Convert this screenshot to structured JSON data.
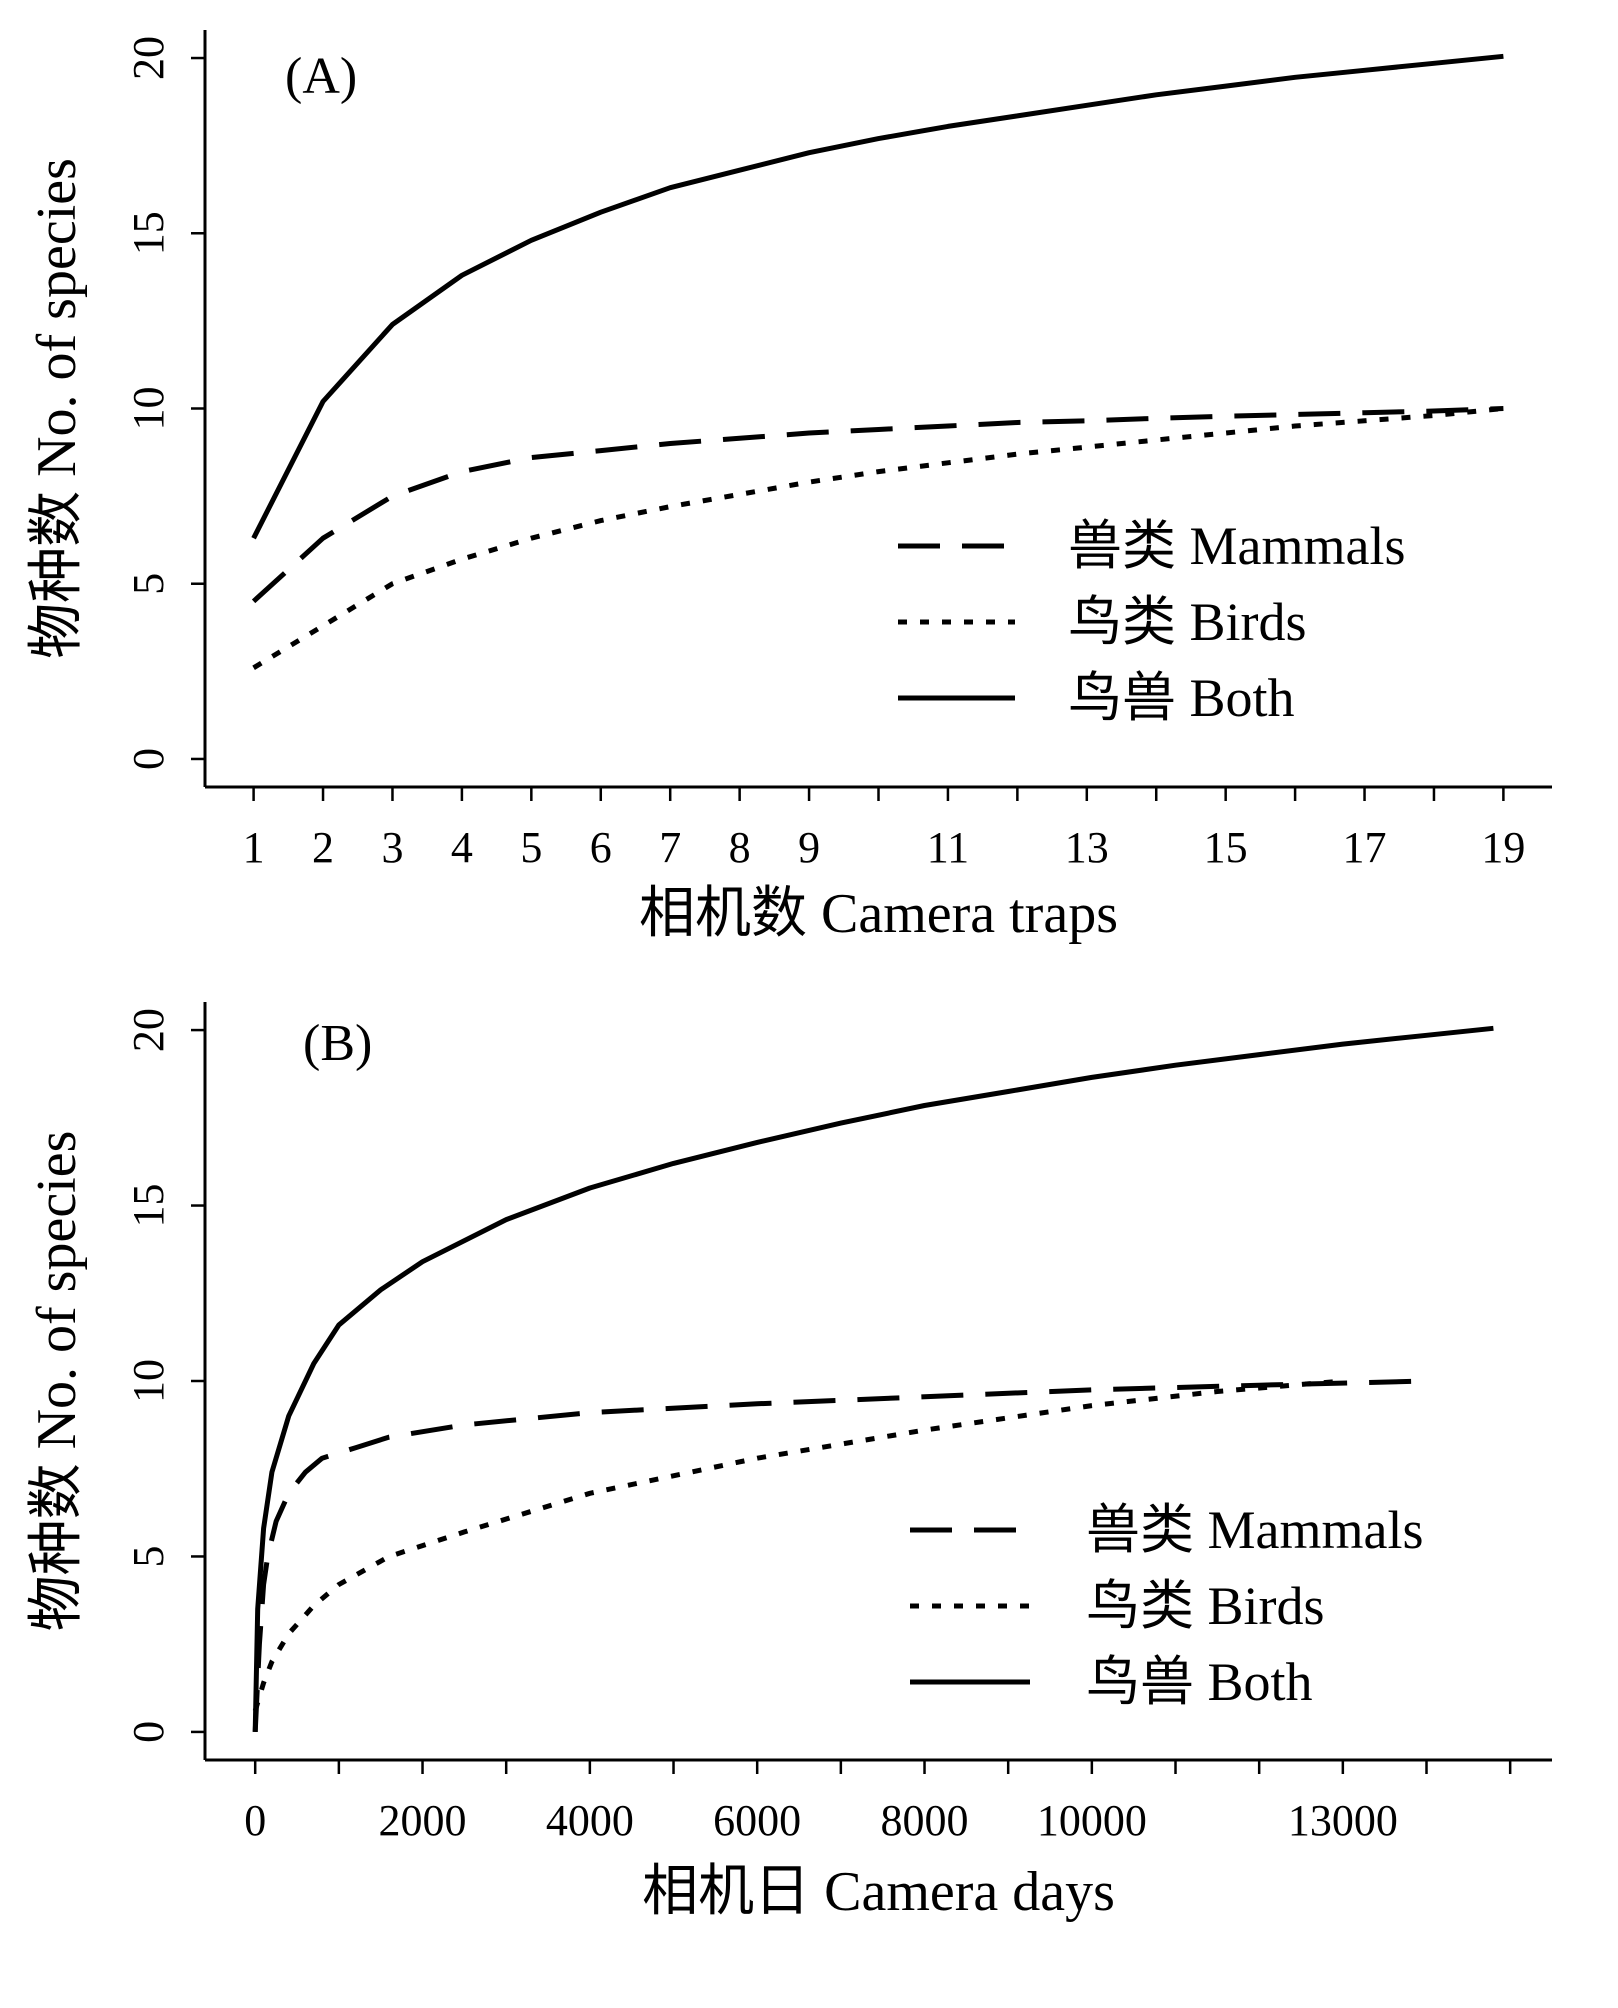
{
  "chart_data": [
    {
      "type": "line",
      "panel_label": "(A)",
      "xlabel": "相机数 Camera traps",
      "ylabel": "物种数 No. of species",
      "xlim": [
        0.3,
        19.7
      ],
      "ylim": [
        -0.8,
        20.8
      ],
      "x_ticks": [
        1,
        2,
        3,
        4,
        5,
        6,
        7,
        8,
        9,
        11,
        13,
        15,
        17,
        19
      ],
      "x_minor_ticks": [
        10,
        12,
        14,
        16,
        18
      ],
      "y_ticks": [
        0,
        5,
        10,
        15,
        20
      ],
      "grid": false,
      "legend": "bottom-right",
      "series": [
        {
          "name": "兽类 Mammals",
          "style": "dashed",
          "x": [
            1,
            2,
            3,
            4,
            5,
            6,
            7,
            8,
            9,
            10,
            11,
            12,
            13,
            14,
            15,
            16,
            17,
            18,
            19
          ],
          "y": [
            4.5,
            6.3,
            7.5,
            8.2,
            8.6,
            8.8,
            9.0,
            9.15,
            9.3,
            9.4,
            9.5,
            9.6,
            9.65,
            9.72,
            9.78,
            9.83,
            9.88,
            9.93,
            10.0
          ]
        },
        {
          "name": "鸟类 Birds",
          "style": "dotted",
          "x": [
            1,
            2,
            3,
            4,
            5,
            6,
            7,
            8,
            9,
            10,
            11,
            12,
            13,
            14,
            15,
            16,
            17,
            18,
            19
          ],
          "y": [
            2.6,
            3.8,
            5.0,
            5.7,
            6.3,
            6.8,
            7.2,
            7.55,
            7.9,
            8.2,
            8.45,
            8.7,
            8.9,
            9.1,
            9.3,
            9.5,
            9.65,
            9.8,
            10.0
          ]
        },
        {
          "name": "鸟兽 Both",
          "style": "solid",
          "x": [
            1,
            2,
            3,
            4,
            5,
            6,
            7,
            8,
            9,
            10,
            11,
            12,
            13,
            14,
            15,
            16,
            17,
            18,
            19
          ],
          "y": [
            6.3,
            10.2,
            12.4,
            13.8,
            14.8,
            15.6,
            16.3,
            16.8,
            17.3,
            17.7,
            18.05,
            18.35,
            18.65,
            18.95,
            19.2,
            19.45,
            19.65,
            19.85,
            20.05
          ]
        }
      ]
    },
    {
      "type": "line",
      "panel_label": "(B)",
      "xlabel": "相机日 Camera days",
      "ylabel": "物种数 No. of species",
      "xlim": [
        -600,
        15500
      ],
      "ylim": [
        -0.8,
        20.8
      ],
      "x_ticks": [
        0,
        2000,
        4000,
        6000,
        8000,
        10000,
        13000
      ],
      "x_minor_ticks": [
        1000,
        3000,
        5000,
        7000,
        9000,
        11000,
        12000,
        14000,
        15000
      ],
      "y_ticks": [
        0,
        5,
        10,
        15,
        20
      ],
      "grid": false,
      "legend": "bottom-right",
      "series": [
        {
          "name": "兽类 Mammals",
          "style": "dashed",
          "x": [
            0,
            50,
            100,
            150,
            250,
            400,
            600,
            800,
            1200,
            1600,
            2500,
            4000,
            6000,
            8000,
            10000,
            12000,
            14000
          ],
          "y": [
            0,
            2.5,
            4.2,
            5.0,
            6.0,
            6.8,
            7.4,
            7.8,
            8.1,
            8.4,
            8.75,
            9.1,
            9.35,
            9.55,
            9.75,
            9.88,
            10.0
          ]
        },
        {
          "name": "鸟类 Birds",
          "style": "dotted",
          "x": [
            0,
            100,
            200,
            400,
            700,
            1000,
            1600,
            2500,
            4000,
            6000,
            8000,
            10000,
            11500,
            13000
          ],
          "y": [
            0.6,
            1.4,
            2.0,
            2.8,
            3.6,
            4.2,
            5.0,
            5.7,
            6.8,
            7.8,
            8.6,
            9.3,
            9.7,
            10.0
          ]
        },
        {
          "name": "鸟兽 Both",
          "style": "solid",
          "x": [
            0,
            30,
            100,
            200,
            400,
            700,
            1000,
            1500,
            2000,
            3000,
            4000,
            5000,
            6000,
            7000,
            8000,
            9000,
            10000,
            11000,
            12000,
            13000,
            14000,
            14800
          ],
          "y": [
            0,
            3.5,
            5.8,
            7.4,
            9.0,
            10.5,
            11.6,
            12.6,
            13.4,
            14.6,
            15.5,
            16.2,
            16.8,
            17.35,
            17.85,
            18.25,
            18.65,
            19.0,
            19.3,
            19.6,
            19.85,
            20.05
          ]
        }
      ]
    }
  ]
}
